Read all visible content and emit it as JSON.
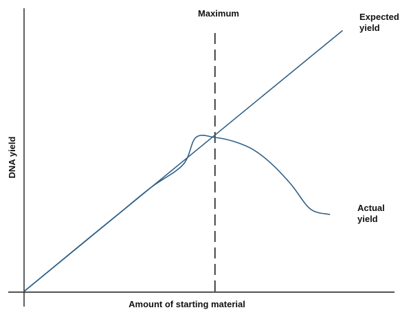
{
  "chart_data": {
    "type": "line",
    "title": "",
    "xlabel": "Amount of starting material",
    "ylabel": "DNA yield",
    "grid": false,
    "legend": "none",
    "xlim": [
      0,
      10
    ],
    "ylim": [
      0,
      10
    ],
    "series": [
      {
        "name": "Expected yield",
        "label_lines": [
          "Expected",
          "yield"
        ],
        "color": "#2f5f86",
        "x": [
          0,
          10
        ],
        "y": [
          0,
          9.65
        ]
      },
      {
        "name": "Actual yield",
        "label_lines": [
          "Actual",
          "yield"
        ],
        "color": "#2f5f86",
        "x": [
          0,
          1,
          2,
          3,
          4,
          5,
          5.4,
          6,
          6.6,
          7.2,
          7.8,
          8.4,
          9,
          9.6
        ],
        "y": [
          0,
          0.97,
          1.94,
          2.9,
          3.86,
          4.7,
          5.7,
          5.7,
          5.55,
          5.25,
          4.7,
          3.95,
          3.05,
          2.85
        ]
      }
    ],
    "annotations": [
      {
        "label": "Maximum",
        "type": "vertical-dashed-line",
        "x": 6.0,
        "color": "#1a1a1a"
      }
    ]
  }
}
